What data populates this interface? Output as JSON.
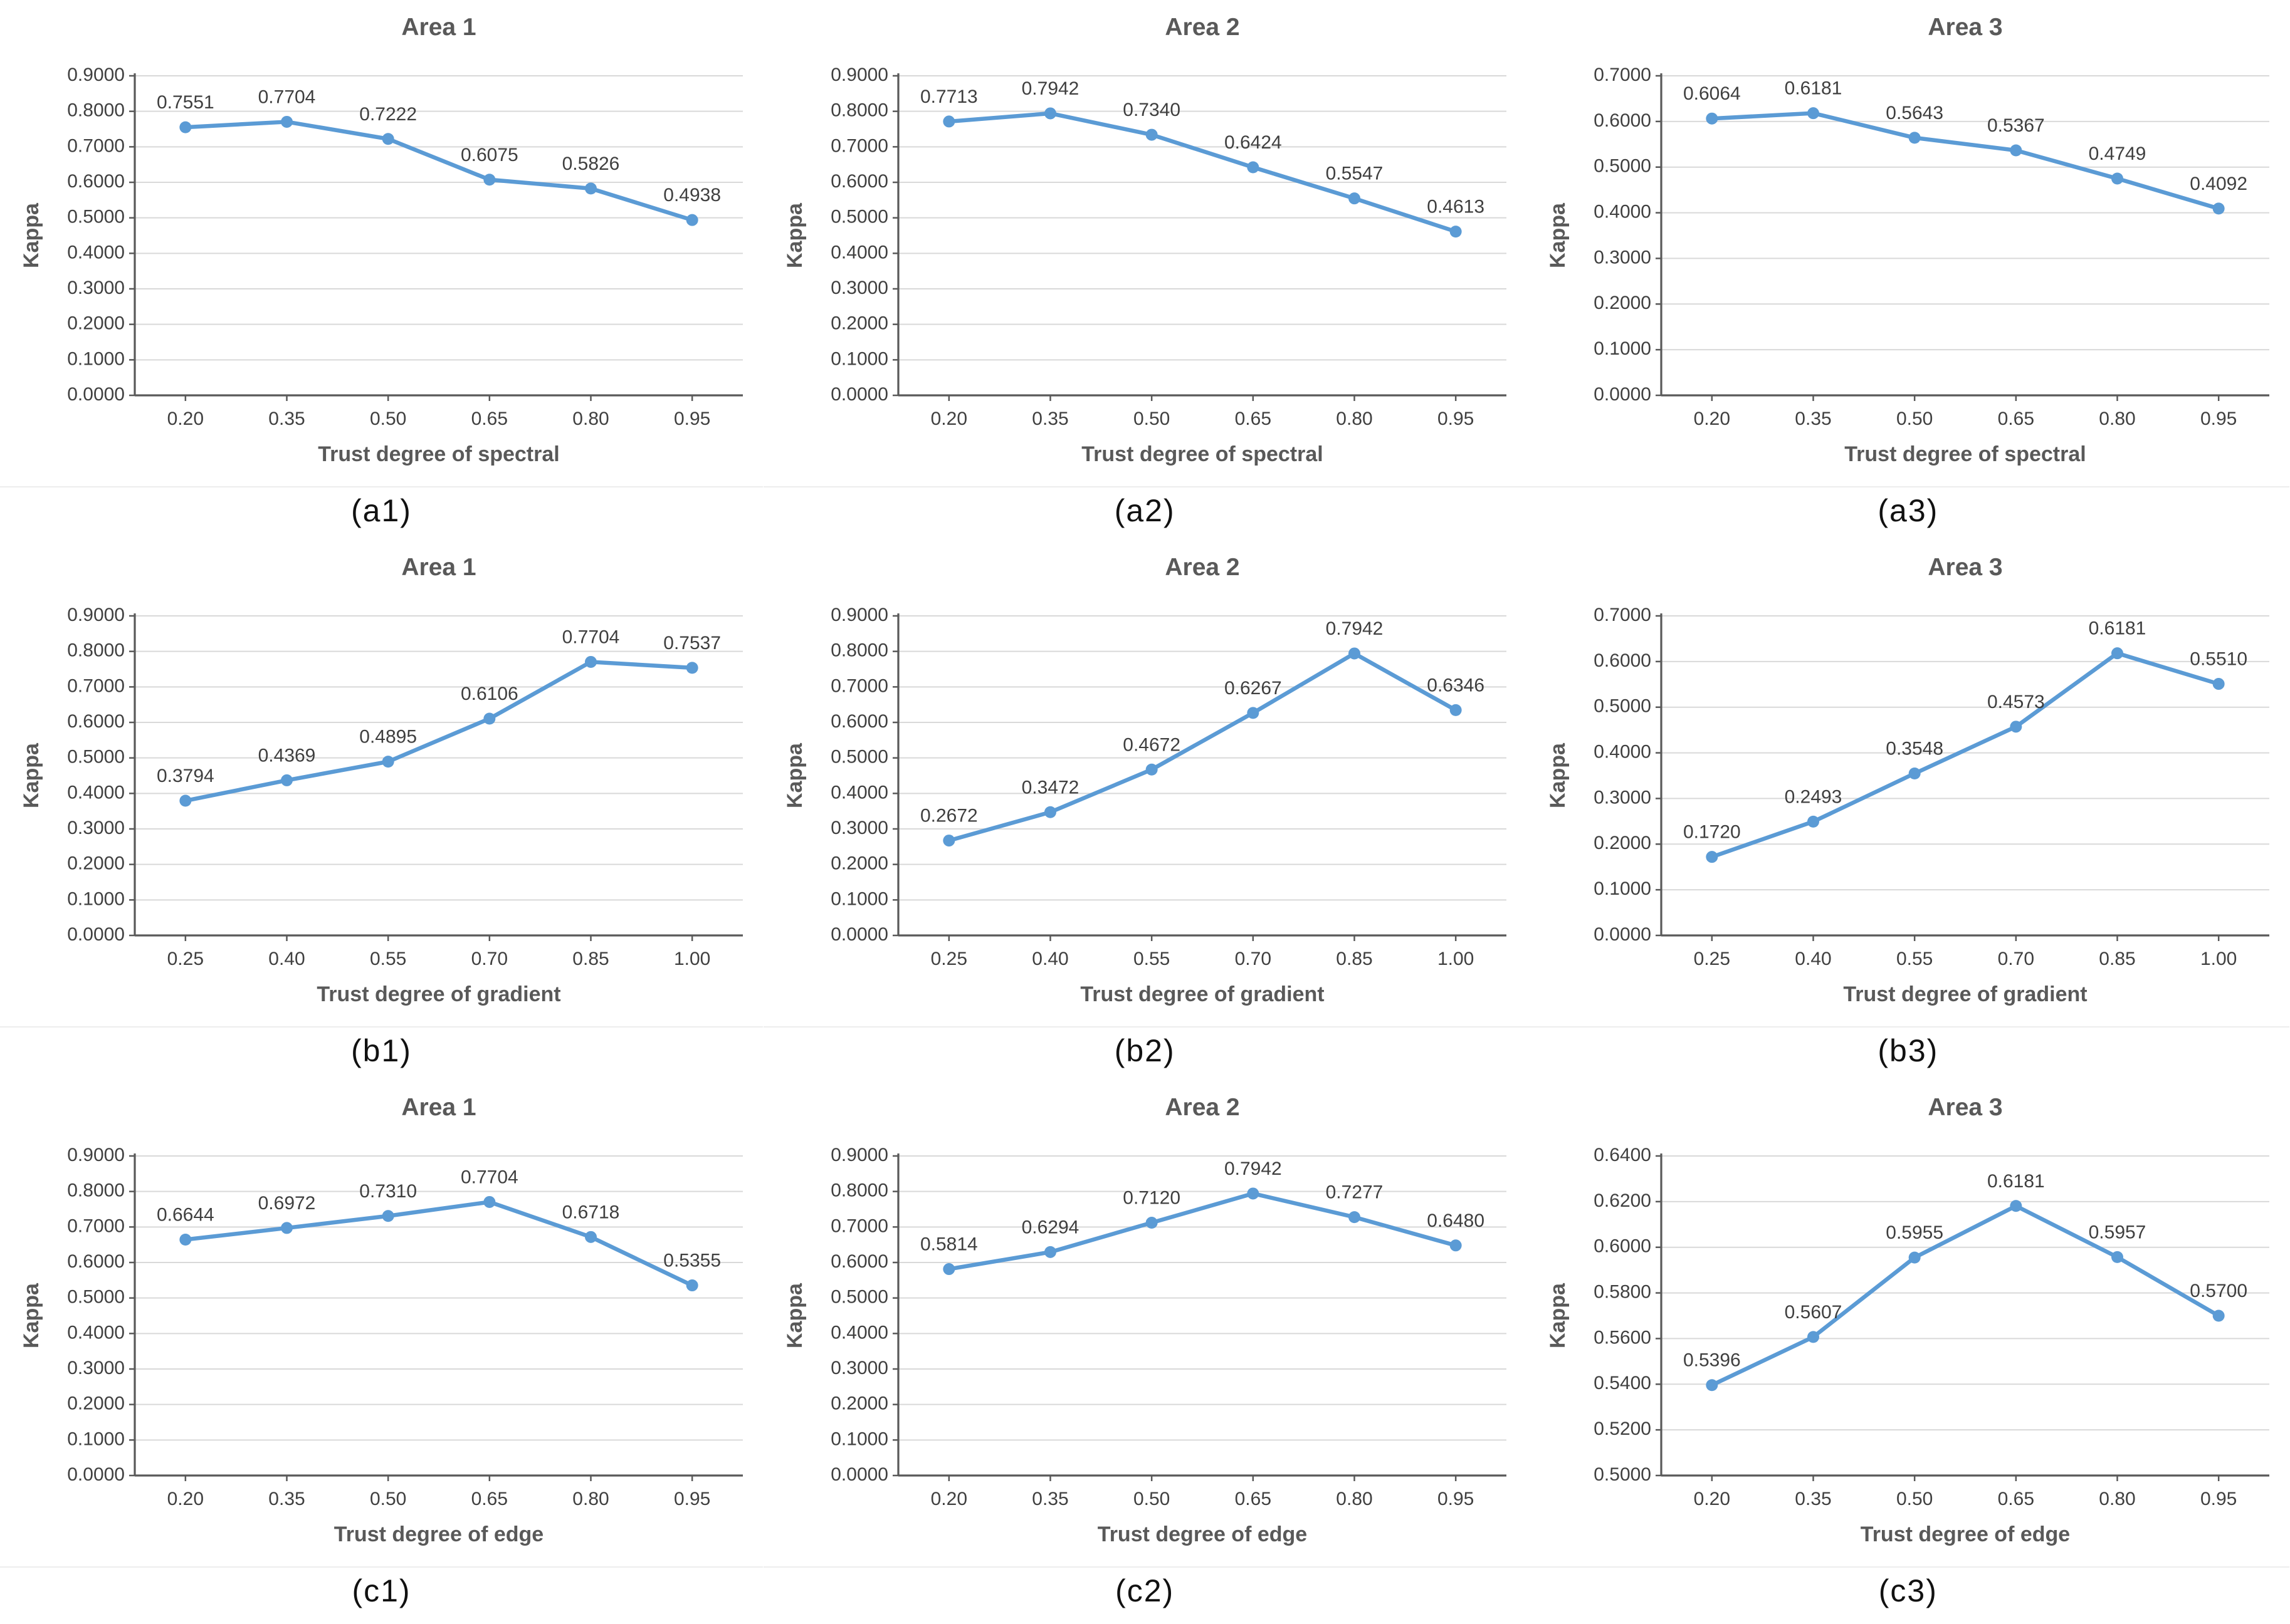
{
  "figure": {
    "y_axis_title": "Kappa",
    "colors": {
      "line": "#5B9BD5",
      "grid": "#d9d9d9",
      "axis": "#595959",
      "tick_label": "#404040",
      "title": "#595959",
      "data_label": "#3f3f3f",
      "caption": "#111111"
    }
  },
  "chart_data": [
    {
      "type": "line",
      "title": "Area 1",
      "caption": "(a1)",
      "xlabel": "Trust degree of spectral",
      "ylabel": "Kappa",
      "categories": [
        "0.20",
        "0.35",
        "0.50",
        "0.65",
        "0.80",
        "0.95"
      ],
      "values": [
        0.7551,
        0.7704,
        0.7222,
        0.6075,
        0.5826,
        0.4938
      ],
      "point_labels": [
        "0.7551",
        "0.7704",
        "0.7222",
        "0.6075",
        "0.5826",
        "0.4938"
      ],
      "ylim": [
        0,
        0.9
      ],
      "y_tick_labels": [
        "0.0000",
        "0.1000",
        "0.2000",
        "0.3000",
        "0.4000",
        "0.5000",
        "0.6000",
        "0.7000",
        "0.8000",
        "0.9000"
      ],
      "grid": true,
      "legend": "none"
    },
    {
      "type": "line",
      "title": "Area 2",
      "caption": "(a2)",
      "xlabel": "Trust degree of spectral",
      "ylabel": "Kappa",
      "categories": [
        "0.20",
        "0.35",
        "0.50",
        "0.65",
        "0.80",
        "0.95"
      ],
      "values": [
        0.7713,
        0.7942,
        0.734,
        0.6424,
        0.5547,
        0.4613
      ],
      "point_labels": [
        "0.7713",
        "0.7942",
        "0.7340",
        "0.6424",
        "0.5547",
        "0.4613"
      ],
      "ylim": [
        0,
        0.9
      ],
      "y_tick_labels": [
        "0.0000",
        "0.1000",
        "0.2000",
        "0.3000",
        "0.4000",
        "0.5000",
        "0.6000",
        "0.7000",
        "0.8000",
        "0.9000"
      ],
      "grid": true,
      "legend": "none"
    },
    {
      "type": "line",
      "title": "Area 3",
      "caption": "(a3)",
      "xlabel": "Trust degree of spectral",
      "ylabel": "Kappa",
      "categories": [
        "0.20",
        "0.35",
        "0.50",
        "0.65",
        "0.80",
        "0.95"
      ],
      "values": [
        0.6064,
        0.6181,
        0.5643,
        0.5367,
        0.4749,
        0.4092
      ],
      "point_labels": [
        "0.6064",
        "0.6181",
        "0.5643",
        "0.5367",
        "0.4749",
        "0.4092"
      ],
      "ylim": [
        0,
        0.7
      ],
      "y_tick_labels": [
        "0.0000",
        "0.1000",
        "0.2000",
        "0.3000",
        "0.4000",
        "0.5000",
        "0.6000",
        "0.7000"
      ],
      "grid": true,
      "legend": "none"
    },
    {
      "type": "line",
      "title": "Area 1",
      "caption": "(b1)",
      "xlabel": "Trust degree of gradient",
      "ylabel": "Kappa",
      "categories": [
        "0.25",
        "0.40",
        "0.55",
        "0.70",
        "0.85",
        "1.00"
      ],
      "values": [
        0.3794,
        0.4369,
        0.4895,
        0.6106,
        0.7704,
        0.7537
      ],
      "point_labels": [
        "0.3794",
        "0.4369",
        "0.4895",
        "0.6106",
        "0.7704",
        "0.7537"
      ],
      "ylim": [
        0,
        0.9
      ],
      "y_tick_labels": [
        "0.0000",
        "0.1000",
        "0.2000",
        "0.3000",
        "0.4000",
        "0.5000",
        "0.6000",
        "0.7000",
        "0.8000",
        "0.9000"
      ],
      "grid": true,
      "legend": "none"
    },
    {
      "type": "line",
      "title": "Area 2",
      "caption": "(b2)",
      "xlabel": "Trust degree of gradient",
      "ylabel": "Kappa",
      "categories": [
        "0.25",
        "0.40",
        "0.55",
        "0.70",
        "0.85",
        "1.00"
      ],
      "values": [
        0.2672,
        0.3472,
        0.4672,
        0.6267,
        0.7942,
        0.6346
      ],
      "point_labels": [
        "0.2672",
        "0.3472",
        "0.4672",
        "0.6267",
        "0.7942",
        "0.6346"
      ],
      "ylim": [
        0,
        0.9
      ],
      "y_tick_labels": [
        "0.0000",
        "0.1000",
        "0.2000",
        "0.3000",
        "0.4000",
        "0.5000",
        "0.6000",
        "0.7000",
        "0.8000",
        "0.9000"
      ],
      "grid": true,
      "legend": "none"
    },
    {
      "type": "line",
      "title": "Area 3",
      "caption": "(b3)",
      "xlabel": "Trust degree of gradient",
      "ylabel": "Kappa",
      "categories": [
        "0.25",
        "0.40",
        "0.55",
        "0.70",
        "0.85",
        "1.00"
      ],
      "values": [
        0.172,
        0.2493,
        0.3548,
        0.4573,
        0.6181,
        0.551
      ],
      "point_labels": [
        "0.1720",
        "0.2493",
        "0.3548",
        "0.4573",
        "0.6181",
        "0.5510"
      ],
      "ylim": [
        0,
        0.7
      ],
      "y_tick_labels": [
        "0.0000",
        "0.1000",
        "0.2000",
        "0.3000",
        "0.4000",
        "0.5000",
        "0.6000",
        "0.7000"
      ],
      "grid": true,
      "legend": "none"
    },
    {
      "type": "line",
      "title": "Area 1",
      "caption": "(c1)",
      "xlabel": "Trust degree of edge",
      "ylabel": "Kappa",
      "categories": [
        "0.20",
        "0.35",
        "0.50",
        "0.65",
        "0.80",
        "0.95"
      ],
      "values": [
        0.6644,
        0.6972,
        0.731,
        0.7704,
        0.6718,
        0.5355
      ],
      "point_labels": [
        "0.6644",
        "0.6972",
        "0.7310",
        "0.7704",
        "0.6718",
        "0.5355"
      ],
      "ylim": [
        0,
        0.9
      ],
      "y_tick_labels": [
        "0.0000",
        "0.1000",
        "0.2000",
        "0.3000",
        "0.4000",
        "0.5000",
        "0.6000",
        "0.7000",
        "0.8000",
        "0.9000"
      ],
      "grid": true,
      "legend": "none"
    },
    {
      "type": "line",
      "title": "Area 2",
      "caption": "(c2)",
      "xlabel": "Trust degree of edge",
      "ylabel": "Kappa",
      "categories": [
        "0.20",
        "0.35",
        "0.50",
        "0.65",
        "0.80",
        "0.95"
      ],
      "values": [
        0.5814,
        0.6294,
        0.712,
        0.7942,
        0.7277,
        0.648
      ],
      "point_labels": [
        "0.5814",
        "0.6294",
        "0.7120",
        "0.7942",
        "0.7277",
        "0.6480"
      ],
      "ylim": [
        0,
        0.9
      ],
      "y_tick_labels": [
        "0.0000",
        "0.1000",
        "0.2000",
        "0.3000",
        "0.4000",
        "0.5000",
        "0.6000",
        "0.7000",
        "0.8000",
        "0.9000"
      ],
      "grid": true,
      "legend": "none"
    },
    {
      "type": "line",
      "title": "Area 3",
      "caption": "(c3)",
      "xlabel": "Trust degree of edge",
      "ylabel": "Kappa",
      "categories": [
        "0.20",
        "0.35",
        "0.50",
        "0.65",
        "0.80",
        "0.95"
      ],
      "values": [
        0.5396,
        0.5607,
        0.5955,
        0.6181,
        0.5957,
        0.57
      ],
      "point_labels": [
        "0.5396",
        "0.5607",
        "0.5955",
        "0.6181",
        "0.5957",
        "0.5700"
      ],
      "ylim": [
        0.5,
        0.64
      ],
      "y_tick_labels": [
        "0.5000",
        "0.5200",
        "0.5400",
        "0.5600",
        "0.5800",
        "0.6000",
        "0.6200",
        "0.6400"
      ],
      "grid": true,
      "legend": "none"
    }
  ]
}
